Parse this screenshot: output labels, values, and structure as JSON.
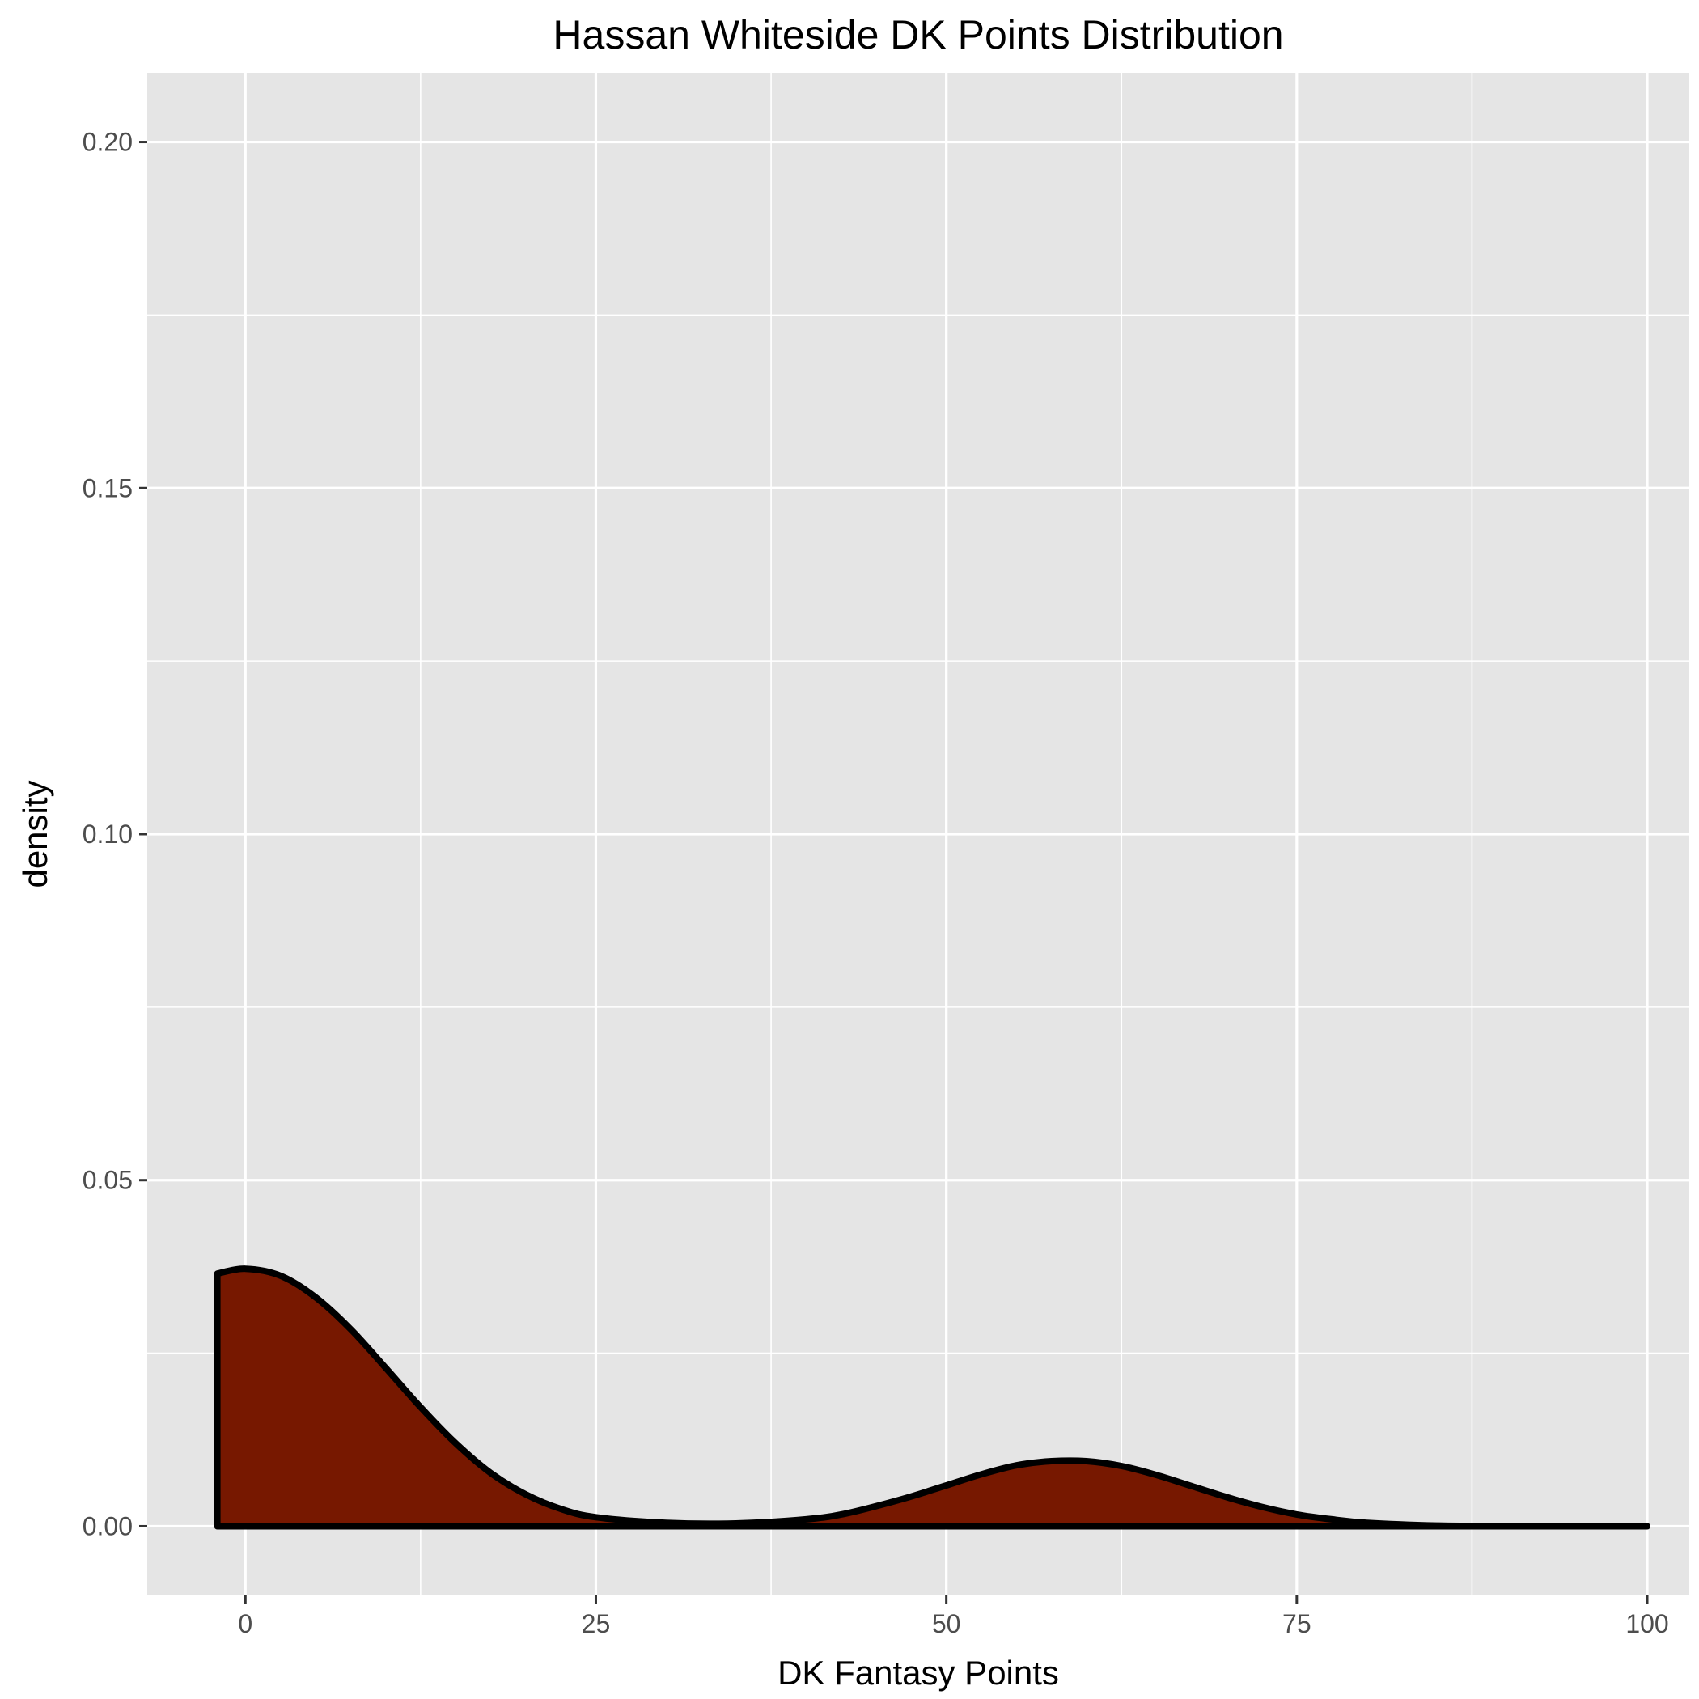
{
  "chart_data": {
    "type": "area",
    "title": "Hassan Whiteside DK Points Distribution",
    "xlabel": "DK Fantasy Points",
    "ylabel": "density",
    "xlim": [
      -7,
      103
    ],
    "ylim": [
      -0.01,
      0.21
    ],
    "x_ticks": [
      0,
      25,
      50,
      75,
      100
    ],
    "x_tick_labels": [
      "0",
      "25",
      "50",
      "75",
      "100"
    ],
    "y_ticks": [
      0.0,
      0.05,
      0.1,
      0.15,
      0.2
    ],
    "y_tick_labels": [
      "0.00",
      "0.05",
      "0.10",
      "0.15",
      "0.20"
    ],
    "grid": true,
    "legend": "none",
    "fill_color": "#771800",
    "line_color": "#000000",
    "panel_color": "#e5e5e5",
    "series": [
      {
        "x": [
          -2,
          0,
          2.5,
          5,
          7.5,
          10,
          12.5,
          15,
          17.5,
          20,
          22.5,
          25,
          30,
          35,
          40,
          42.5,
          45,
          47.5,
          50,
          52.5,
          55,
          57.5,
          60,
          62.5,
          65,
          67.5,
          70,
          72.5,
          75,
          77.5,
          80,
          85,
          90,
          95,
          100
        ],
        "y": [
          0.0365,
          0.0372,
          0.0362,
          0.0331,
          0.0285,
          0.0229,
          0.0172,
          0.012,
          0.0077,
          0.0046,
          0.0025,
          0.0013,
          0.0005,
          0.0004,
          0.001,
          0.0017,
          0.0029,
          0.0043,
          0.0059,
          0.0075,
          0.0088,
          0.0094,
          0.0094,
          0.0087,
          0.0074,
          0.0058,
          0.0042,
          0.0028,
          0.0017,
          0.001,
          0.0005,
          0.0001,
          3e-05,
          1e-05,
          0.0
        ]
      }
    ]
  }
}
